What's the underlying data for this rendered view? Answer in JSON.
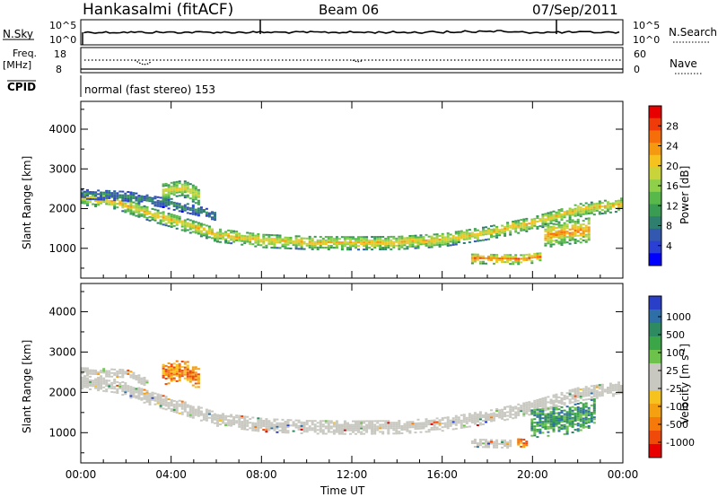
{
  "header": {
    "station": "Hankasalmi (fitACF)",
    "beam": "Beam 06",
    "date": "07/Sep/2011"
  },
  "sky_panel": {
    "left_label": "N.Sky",
    "right_label": "N.Search",
    "left_ticks": [
      "10^5",
      "10^0"
    ],
    "right_ticks": [
      "10^5",
      "10^0"
    ]
  },
  "freq_panel": {
    "left_label_1": "Freq.",
    "left_label_2": "[MHz]",
    "right_label": "Nave",
    "left_ticks": [
      "18",
      "8"
    ],
    "right_ticks": [
      "60",
      "0"
    ]
  },
  "cpid": {
    "label": "CPID",
    "value": "normal (fast stereo) 153"
  },
  "chart_data": [
    {
      "type": "heatmap",
      "quantity": "Power",
      "ylabel": "Slant Range [km]",
      "xlabel": "",
      "y_ticks": [
        "1000",
        "2000",
        "3000",
        "4000"
      ],
      "y_tick_values": [
        1000,
        2000,
        3000,
        4000
      ],
      "ylim": [
        250,
        4700
      ],
      "x_ticks": [
        "00:00",
        "04:00",
        "08:00",
        "12:00",
        "16:00",
        "20:00",
        "00:00"
      ],
      "xlim_hours": [
        0,
        24
      ],
      "colorbar": {
        "label": "Power [dB]",
        "tick_labels": [
          "4",
          "8",
          "12",
          "16",
          "20",
          "24",
          "28"
        ],
        "tick_values": [
          4,
          8,
          12,
          16,
          20,
          24,
          28
        ],
        "range": [
          0,
          32
        ],
        "colors": [
          "#0000ff",
          "#2a3fd4",
          "#3358b0",
          "#2f7f6f",
          "#3a9b52",
          "#59b84a",
          "#8fd04a",
          "#c8d43a",
          "#f5c21e",
          "#f59a10",
          "#f56e0a",
          "#ef3a0a",
          "#e80000"
        ]
      },
      "echo_bands": [
        {
          "center_km": [
            [
              0,
              2250
            ],
            [
              1.5,
              2150
            ],
            [
              3,
              1850
            ],
            [
              4.5,
              1600
            ],
            [
              6,
              1320
            ],
            [
              8,
              1180
            ],
            [
              10,
              1130
            ],
            [
              12,
              1120
            ],
            [
              14,
              1130
            ],
            [
              16,
              1200
            ],
            [
              18,
              1380
            ],
            [
              20,
              1620
            ],
            [
              22,
              1950
            ],
            [
              24,
              2100
            ]
          ],
          "width_km": 350,
          "power_db": 22
        },
        {
          "center_km": [
            [
              0,
              2350
            ],
            [
              2,
              2300
            ],
            [
              3.5,
              2150
            ],
            [
              5,
              1950
            ],
            [
              6,
              1800
            ]
          ],
          "width_km": 250,
          "power_db": 9
        },
        {
          "center_km": [
            [
              17.2,
              730
            ],
            [
              19.5,
              710
            ],
            [
              20.3,
              760
            ]
          ],
          "width_km": 260,
          "power_db": 27
        },
        {
          "center_km": [
            [
              20.5,
              1300
            ],
            [
              21.7,
              1400
            ],
            [
              22.5,
              1450
            ]
          ],
          "width_km": 600,
          "power_db": 25
        },
        {
          "center_km": [
            [
              3.5,
              2400
            ],
            [
              4.5,
              2500
            ],
            [
              5.2,
              2300
            ]
          ],
          "width_km": 450,
          "power_db": 20
        }
      ]
    },
    {
      "type": "heatmap",
      "quantity": "Velocity",
      "ylabel": "Slant Range [km]",
      "xlabel": "Time UT",
      "y_ticks": [
        "1000",
        "2000",
        "3000",
        "4000"
      ],
      "y_tick_values": [
        1000,
        2000,
        3000,
        4000
      ],
      "ylim": [
        250,
        4700
      ],
      "x_ticks": [
        "00:00",
        "04:00",
        "08:00",
        "12:00",
        "16:00",
        "20:00",
        "00:00"
      ],
      "xlim_hours": [
        0,
        24
      ],
      "colorbar": {
        "label": "Velocity [m s^-1]",
        "tick_labels": [
          "1000",
          "500",
          "100",
          "25",
          "-25",
          "-100",
          "-500",
          "-1000"
        ],
        "colors": [
          "#2a3fc8",
          "#2e6fa8",
          "#2e8a60",
          "#3aa648",
          "#6cc24a",
          "#c8c8c0",
          "#c8c8c0",
          "#f5c21e",
          "#f5a010",
          "#f57a0a",
          "#ef4a0a",
          "#e80000"
        ]
      },
      "echo_bands": [
        {
          "center_km": [
            [
              0,
              2250
            ],
            [
              1.5,
              2150
            ],
            [
              3,
              1850
            ],
            [
              4.5,
              1600
            ],
            [
              6,
              1320
            ],
            [
              8,
              1180
            ],
            [
              10,
              1130
            ],
            [
              12,
              1120
            ],
            [
              14,
              1130
            ],
            [
              16,
              1200
            ],
            [
              18,
              1380
            ],
            [
              20,
              1620
            ],
            [
              22,
              1950
            ],
            [
              24,
              2100
            ]
          ],
          "width_km": 350,
          "velocity_class": "ground"
        },
        {
          "center_km": [
            [
              0,
              2500
            ],
            [
              2,
              2450
            ],
            [
              3,
              2200
            ]
          ],
          "width_km": 200,
          "velocity_class": "ground"
        },
        {
          "center_km": [
            [
              3.5,
              2400
            ],
            [
              4.5,
              2550
            ],
            [
              5.2,
              2300
            ]
          ],
          "width_km": 500,
          "velocity_class": "negative"
        },
        {
          "center_km": [
            [
              17.2,
              730
            ],
            [
              19,
              700
            ]
          ],
          "width_km": 200,
          "velocity_class": "ground"
        },
        {
          "center_km": [
            [
              19.2,
              740
            ],
            [
              19.7,
              720
            ]
          ],
          "width_km": 200,
          "velocity_class": "negative"
        },
        {
          "center_km": [
            [
              19.8,
              1200
            ],
            [
              21.5,
              1300
            ],
            [
              22.8,
              1500
            ]
          ],
          "width_km": 700,
          "velocity_class": "positive"
        }
      ]
    }
  ],
  "colors": {
    "frame": "#000000",
    "background": "#ffffff"
  }
}
